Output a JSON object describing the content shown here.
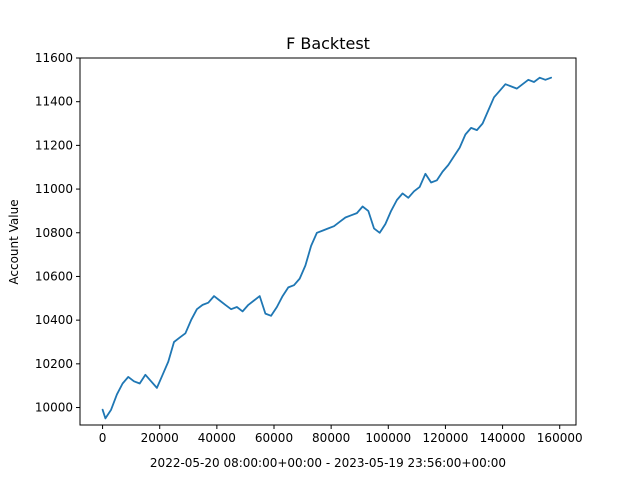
{
  "chart_data": {
    "type": "line",
    "title": "F Backtest",
    "xlabel": "2022-05-20 08:00:00+00:00 - 2023-05-19 23:56:00+00:00",
    "ylabel": "Account Value",
    "xlim": [
      -7900,
      165700
    ],
    "ylim": [
      9920,
      11600
    ],
    "x_ticks": [
      0,
      20000,
      40000,
      60000,
      80000,
      100000,
      120000,
      140000,
      160000
    ],
    "x_tick_labels": [
      "0",
      "20000",
      "40000",
      "60000",
      "80000",
      "100000",
      "120000",
      "140000",
      "160000"
    ],
    "y_ticks": [
      10000,
      10200,
      10400,
      10600,
      10800,
      11000,
      11200,
      11400,
      11600
    ],
    "y_tick_labels": [
      "10000",
      "10200",
      "10400",
      "10600",
      "10800",
      "11000",
      "11200",
      "11400",
      "11600"
    ],
    "grid": false,
    "series": [
      {
        "color": "#1f77b4",
        "x": [
          0,
          1000,
          3000,
          5000,
          7000,
          9000,
          11000,
          13000,
          15000,
          17000,
          19000,
          21000,
          23000,
          25000,
          27000,
          29000,
          31000,
          33000,
          35000,
          37000,
          39000,
          41000,
          43000,
          45000,
          47000,
          49000,
          51000,
          53000,
          55000,
          57000,
          59000,
          61000,
          63000,
          65000,
          67000,
          69000,
          71000,
          73000,
          75000,
          77000,
          79000,
          81000,
          83000,
          85000,
          87000,
          89000,
          91000,
          93000,
          95000,
          97000,
          99000,
          101000,
          103000,
          105000,
          107000,
          109000,
          111000,
          113000,
          115000,
          117000,
          119000,
          121000,
          123000,
          125000,
          127000,
          129000,
          131000,
          133000,
          135000,
          137000,
          139000,
          141000,
          143000,
          145000,
          147000,
          149000,
          151000,
          153000,
          155000,
          157000
        ],
        "y": [
          9990,
          9950,
          9990,
          10060,
          10110,
          10140,
          10120,
          10110,
          10150,
          10120,
          10090,
          10150,
          10210,
          10300,
          10320,
          10340,
          10400,
          10450,
          10470,
          10480,
          10510,
          10490,
          10470,
          10450,
          10460,
          10440,
          10470,
          10490,
          10510,
          10430,
          10420,
          10460,
          10510,
          10550,
          10560,
          10590,
          10650,
          10740,
          10800,
          10810,
          10820,
          10830,
          10850,
          10870,
          10880,
          10890,
          10920,
          10900,
          10820,
          10800,
          10840,
          10900,
          10950,
          10980,
          10960,
          10990,
          11010,
          11070,
          11030,
          11040,
          11080,
          11110,
          11150,
          11190,
          11250,
          11280,
          11270,
          11300,
          11360,
          11420,
          11450,
          11480,
          11470,
          11460,
          11480,
          11500,
          11490,
          11510,
          11500,
          11510
        ]
      }
    ]
  }
}
